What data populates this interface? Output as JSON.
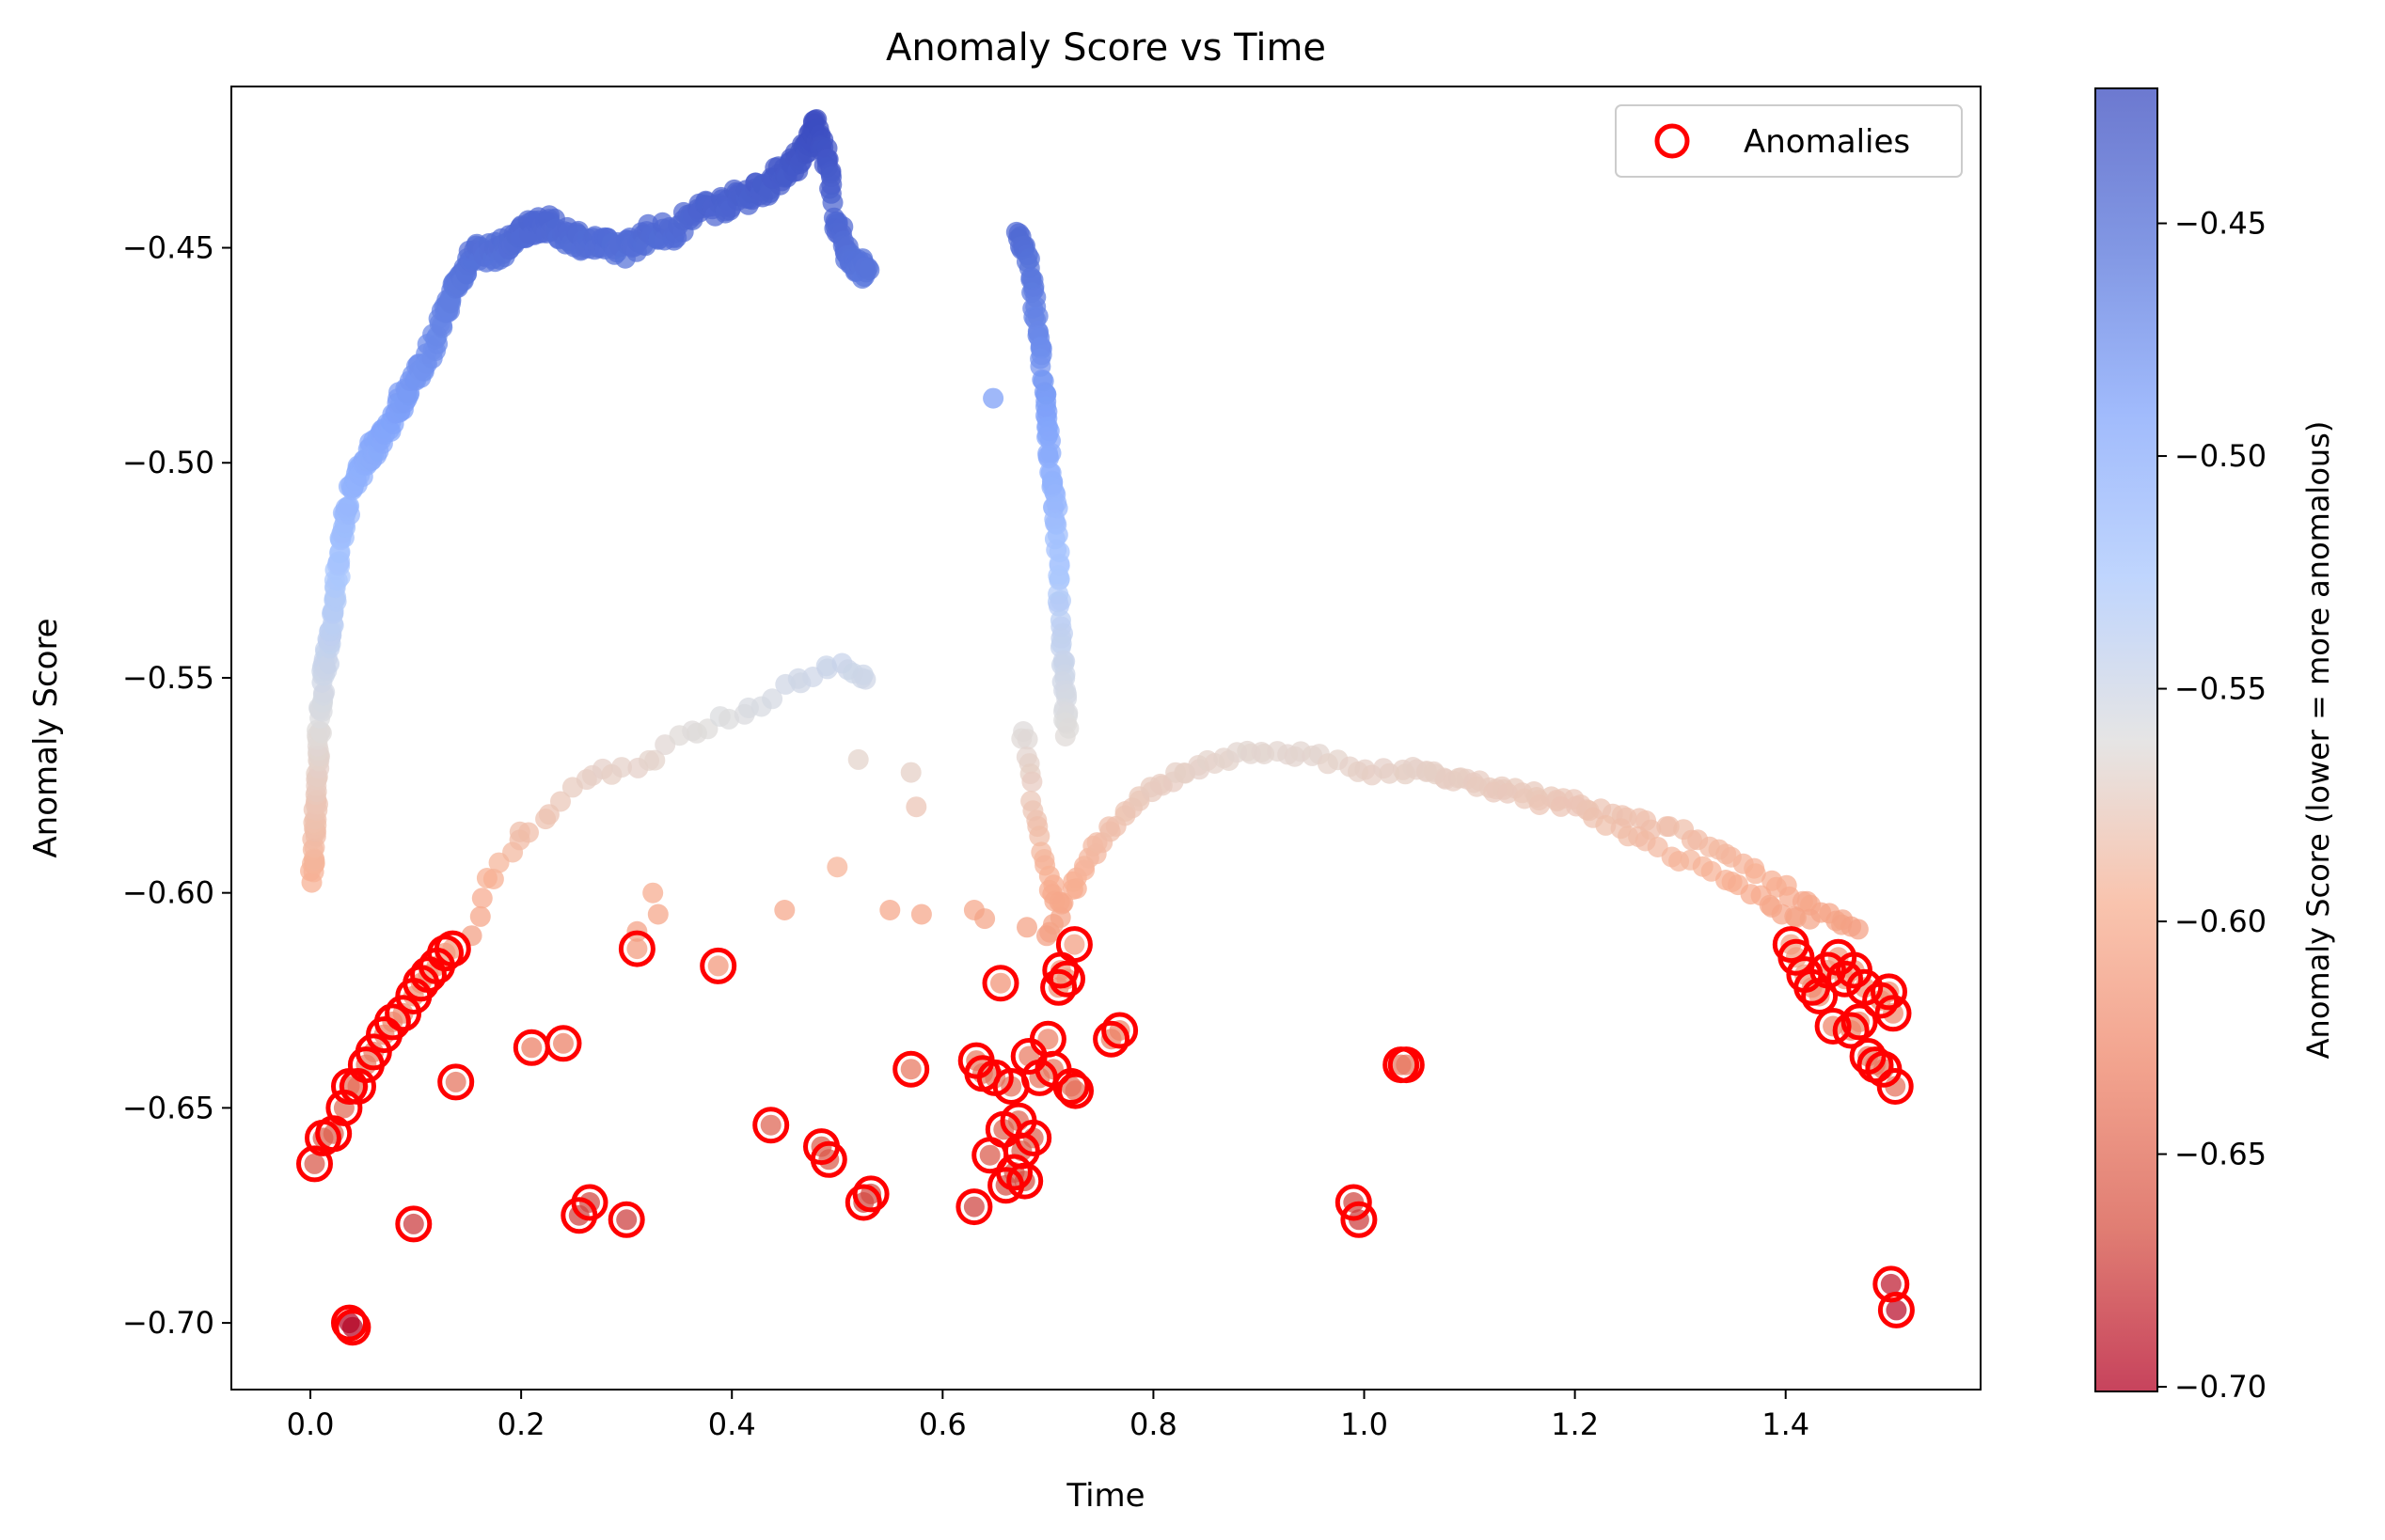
{
  "chart_data": {
    "type": "scatter",
    "title": "Anomaly Score vs Time",
    "xlabel": "Time",
    "ylabel": "Anomaly Score",
    "xlim": [
      -0.075,
      1.585
    ],
    "ylim": [
      -0.7155,
      -0.4125
    ],
    "x_ticks": [
      0.0,
      0.2,
      0.4,
      0.6,
      0.8,
      1.0,
      1.2,
      1.4
    ],
    "x_tick_labels": [
      "0.0",
      "0.2",
      "0.4",
      "0.6",
      "0.8",
      "1.0",
      "1.2",
      "1.4"
    ],
    "y_ticks": [
      -0.45,
      -0.5,
      -0.55,
      -0.6,
      -0.65,
      -0.7
    ],
    "y_tick_labels": [
      "−0.45",
      "−0.50",
      "−0.55",
      "−0.60",
      "−0.65",
      "−0.70"
    ],
    "grid": false,
    "legend": {
      "position": "top-right",
      "entries": [
        "Anomalies"
      ]
    },
    "colorbar": {
      "label": "Anomaly Score (lower = more anomalous)",
      "colormap": "coolwarm",
      "range": [
        -0.701,
        -0.421
      ],
      "ticks": [
        -0.45,
        -0.5,
        -0.55,
        -0.6,
        -0.65,
        -0.7
      ],
      "tick_labels": [
        "−0.45",
        "−0.50",
        "−0.55",
        "−0.60",
        "−0.65",
        "−0.70"
      ]
    },
    "colors": {
      "anomaly_ring": "#ff0000",
      "axes": "#000000"
    },
    "trajectory_anchors": {
      "upper_arch": [
        [
          0.002,
          -0.597
        ],
        [
          0.004,
          -0.585
        ],
        [
          0.006,
          -0.574
        ],
        [
          0.008,
          -0.563
        ],
        [
          0.012,
          -0.552
        ],
        [
          0.016,
          -0.545
        ],
        [
          0.02,
          -0.537
        ],
        [
          0.025,
          -0.527
        ],
        [
          0.03,
          -0.517
        ],
        [
          0.037,
          -0.508
        ],
        [
          0.045,
          -0.503
        ],
        [
          0.055,
          -0.498
        ],
        [
          0.065,
          -0.495
        ],
        [
          0.08,
          -0.488
        ],
        [
          0.095,
          -0.482
        ],
        [
          0.11,
          -0.476
        ],
        [
          0.125,
          -0.467
        ],
        [
          0.135,
          -0.46
        ],
        [
          0.145,
          -0.456
        ],
        [
          0.155,
          -0.451
        ],
        [
          0.175,
          -0.451
        ],
        [
          0.19,
          -0.449
        ],
        [
          0.2,
          -0.447
        ],
        [
          0.215,
          -0.444
        ],
        [
          0.235,
          -0.446
        ],
        [
          0.255,
          -0.448
        ],
        [
          0.28,
          -0.45
        ],
        [
          0.3,
          -0.45
        ],
        [
          0.32,
          -0.447
        ],
        [
          0.345,
          -0.446
        ],
        [
          0.37,
          -0.441
        ],
        [
          0.39,
          -0.44
        ],
        [
          0.41,
          -0.438
        ],
        [
          0.43,
          -0.436
        ],
        [
          0.45,
          -0.432
        ],
        [
          0.465,
          -0.429
        ],
        [
          0.475,
          -0.425
        ],
        [
          0.48,
          -0.422
        ],
        [
          0.49,
          -0.43
        ],
        [
          0.5,
          -0.445
        ],
        [
          0.51,
          -0.452
        ],
        [
          0.52,
          -0.455
        ],
        [
          0.53,
          -0.454
        ]
      ],
      "descending_arc": [
        [
          0.67,
          -0.447
        ],
        [
          0.68,
          -0.452
        ],
        [
          0.687,
          -0.462
        ],
        [
          0.692,
          -0.472
        ],
        [
          0.697,
          -0.485
        ],
        [
          0.7,
          -0.495
        ],
        [
          0.705,
          -0.505
        ],
        [
          0.708,
          -0.515
        ],
        [
          0.711,
          -0.53
        ],
        [
          0.714,
          -0.545
        ],
        [
          0.716,
          -0.556
        ],
        [
          0.718,
          -0.564
        ]
      ],
      "middle_arc": [
        [
          0.15,
          -0.609
        ],
        [
          0.17,
          -0.598
        ],
        [
          0.19,
          -0.59
        ],
        [
          0.21,
          -0.585
        ],
        [
          0.24,
          -0.578
        ],
        [
          0.27,
          -0.572
        ],
        [
          0.3,
          -0.571
        ],
        [
          0.33,
          -0.568
        ],
        [
          0.36,
          -0.563
        ],
        [
          0.39,
          -0.56
        ],
        [
          0.42,
          -0.558
        ],
        [
          0.45,
          -0.552
        ],
        [
          0.48,
          -0.549
        ],
        [
          0.5,
          -0.548
        ],
        [
          0.52,
          -0.55
        ],
        [
          0.53,
          -0.548
        ]
      ],
      "right_arc": [
        [
          0.7,
          -0.61
        ],
        [
          0.72,
          -0.6
        ],
        [
          0.74,
          -0.592
        ],
        [
          0.76,
          -0.585
        ],
        [
          0.79,
          -0.578
        ],
        [
          0.82,
          -0.573
        ],
        [
          0.86,
          -0.569
        ],
        [
          0.9,
          -0.567
        ],
        [
          0.95,
          -0.568
        ],
        [
          1.0,
          -0.572
        ],
        [
          1.05,
          -0.572
        ],
        [
          1.1,
          -0.574
        ],
        [
          1.15,
          -0.577
        ],
        [
          1.2,
          -0.579
        ],
        [
          1.25,
          -0.583
        ],
        [
          1.3,
          -0.586
        ],
        [
          1.35,
          -0.592
        ],
        [
          1.4,
          -0.599
        ],
        [
          1.44,
          -0.605
        ],
        [
          1.47,
          -0.61
        ]
      ],
      "right_arc_lower": [
        [
          1.05,
          -0.571
        ],
        [
          1.1,
          -0.575
        ],
        [
          1.15,
          -0.578
        ],
        [
          1.2,
          -0.58
        ],
        [
          1.25,
          -0.586
        ],
        [
          1.3,
          -0.592
        ],
        [
          1.35,
          -0.598
        ],
        [
          1.39,
          -0.603
        ],
        [
          1.43,
          -0.608
        ]
      ],
      "middle_drop": [
        [
          0.675,
          -0.563
        ],
        [
          0.68,
          -0.567
        ],
        [
          0.685,
          -0.575
        ],
        [
          0.69,
          -0.583
        ],
        [
          0.695,
          -0.59
        ],
        [
          0.7,
          -0.597
        ],
        [
          0.705,
          -0.6
        ],
        [
          0.71,
          -0.603
        ]
      ]
    },
    "scattered_points": [
      [
        0.648,
        -0.485
      ],
      [
        0.52,
        -0.569
      ],
      [
        0.57,
        -0.572
      ],
      [
        0.575,
        -0.58
      ],
      [
        0.5,
        -0.594
      ],
      [
        0.45,
        -0.604
      ],
      [
        0.55,
        -0.604
      ],
      [
        0.58,
        -0.605
      ],
      [
        0.63,
        -0.604
      ],
      [
        0.64,
        -0.606
      ],
      [
        0.68,
        -0.608
      ],
      [
        0.33,
        -0.605
      ],
      [
        0.31,
        -0.609
      ],
      [
        0.325,
        -0.6
      ]
    ],
    "anomalies": [
      [
        0.004,
        -0.663
      ],
      [
        0.012,
        -0.657
      ],
      [
        0.022,
        -0.656
      ],
      [
        0.032,
        -0.65
      ],
      [
        0.037,
        -0.645
      ],
      [
        0.045,
        -0.645
      ],
      [
        0.053,
        -0.64
      ],
      [
        0.06,
        -0.637
      ],
      [
        0.07,
        -0.633
      ],
      [
        0.078,
        -0.63
      ],
      [
        0.088,
        -0.628
      ],
      [
        0.098,
        -0.624
      ],
      [
        0.105,
        -0.621
      ],
      [
        0.112,
        -0.619
      ],
      [
        0.12,
        -0.617
      ],
      [
        0.128,
        -0.614
      ],
      [
        0.135,
        -0.613
      ],
      [
        0.037,
        -0.7
      ],
      [
        0.04,
        -0.701
      ],
      [
        0.098,
        -0.677
      ],
      [
        0.138,
        -0.644
      ],
      [
        0.21,
        -0.636
      ],
      [
        0.24,
        -0.635
      ],
      [
        0.255,
        -0.675
      ],
      [
        0.265,
        -0.672
      ],
      [
        0.3,
        -0.676
      ],
      [
        0.31,
        -0.613
      ],
      [
        0.387,
        -0.617
      ],
      [
        0.437,
        -0.654
      ],
      [
        0.485,
        -0.659
      ],
      [
        0.492,
        -0.662
      ],
      [
        0.525,
        -0.672
      ],
      [
        0.532,
        -0.67
      ],
      [
        0.57,
        -0.641
      ],
      [
        0.63,
        -0.673
      ],
      [
        0.632,
        -0.639
      ],
      [
        0.638,
        -0.642
      ],
      [
        0.645,
        -0.661
      ],
      [
        0.65,
        -0.643
      ],
      [
        0.655,
        -0.621
      ],
      [
        0.658,
        -0.655
      ],
      [
        0.66,
        -0.668
      ],
      [
        0.665,
        -0.645
      ],
      [
        0.668,
        -0.665
      ],
      [
        0.672,
        -0.653
      ],
      [
        0.675,
        -0.66
      ],
      [
        0.678,
        -0.667
      ],
      [
        0.682,
        -0.638
      ],
      [
        0.686,
        -0.657
      ],
      [
        0.692,
        -0.643
      ],
      [
        0.7,
        -0.634
      ],
      [
        0.705,
        -0.641
      ],
      [
        0.71,
        -0.622
      ],
      [
        0.712,
        -0.618
      ],
      [
        0.718,
        -0.62
      ],
      [
        0.722,
        -0.645
      ],
      [
        0.725,
        -0.612
      ],
      [
        0.726,
        -0.646
      ],
      [
        0.76,
        -0.634
      ],
      [
        0.768,
        -0.632
      ],
      [
        0.99,
        -0.672
      ],
      [
        0.995,
        -0.676
      ],
      [
        1.035,
        -0.64
      ],
      [
        1.04,
        -0.64
      ],
      [
        1.405,
        -0.612
      ],
      [
        1.41,
        -0.615
      ],
      [
        1.418,
        -0.619
      ],
      [
        1.425,
        -0.622
      ],
      [
        1.432,
        -0.624
      ],
      [
        1.44,
        -0.618
      ],
      [
        1.445,
        -0.631
      ],
      [
        1.45,
        -0.615
      ],
      [
        1.456,
        -0.62
      ],
      [
        1.462,
        -0.632
      ],
      [
        1.465,
        -0.618
      ],
      [
        1.47,
        -0.63
      ],
      [
        1.475,
        -0.622
      ],
      [
        1.478,
        -0.638
      ],
      [
        1.485,
        -0.64
      ],
      [
        1.49,
        -0.625
      ],
      [
        1.493,
        -0.641
      ],
      [
        1.498,
        -0.623
      ],
      [
        1.502,
        -0.628
      ],
      [
        1.504,
        -0.645
      ],
      [
        1.5,
        -0.691
      ],
      [
        1.505,
        -0.697
      ]
    ]
  }
}
